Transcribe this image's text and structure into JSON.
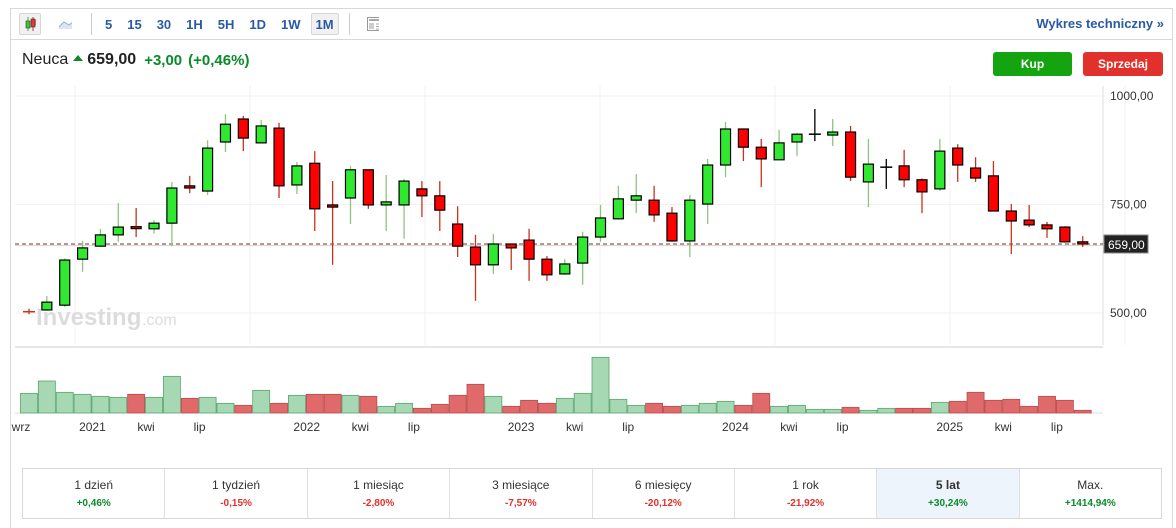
{
  "toolbar": {
    "chart_types": [
      "candlestick-icon",
      "area-chart-icon"
    ],
    "intervals": [
      "5",
      "15",
      "30",
      "1H",
      "5H",
      "1D",
      "1W",
      "1M"
    ],
    "active_interval": "1M",
    "layout_icon": "table-layout-icon",
    "technical_link": "Wykres techniczny »"
  },
  "header": {
    "name": "Neuca",
    "arrow": "up-arrow-icon",
    "price": "659,00",
    "change": "+3,00",
    "change_pct": "(+0,46%)"
  },
  "actions": {
    "buy": "Kup",
    "sell": "Sprzedaj"
  },
  "colors": {
    "up": "#31e831",
    "down": "#ff0000",
    "up_wick": "#8cc47e",
    "down_wick": "#c7341a",
    "vol_up": "#a6d8b4",
    "vol_down": "#e06a6a"
  },
  "chart_data": {
    "type": "candlestick",
    "interval": "1M",
    "y_ticks": [
      "1000,00",
      "750,00",
      "500,00"
    ],
    "y_tick_values": [
      1000,
      750,
      500
    ],
    "ylim": [
      500,
      1000
    ],
    "last_price_label": "659,00",
    "last_price": 659,
    "watermark": "Investing.com",
    "x_labels": [
      {
        "idx": 0,
        "label": "wrz"
      },
      {
        "idx": 4,
        "label": "2021"
      },
      {
        "idx": 7,
        "label": "kwi"
      },
      {
        "idx": 10,
        "label": "lip"
      },
      {
        "idx": 16,
        "label": "2022"
      },
      {
        "idx": 19,
        "label": "kwi"
      },
      {
        "idx": 22,
        "label": "lip"
      },
      {
        "idx": 28,
        "label": "2023"
      },
      {
        "idx": 31,
        "label": "kwi"
      },
      {
        "idx": 34,
        "label": "lip"
      },
      {
        "idx": 40,
        "label": "2024"
      },
      {
        "idx": 43,
        "label": "kwi"
      },
      {
        "idx": 46,
        "label": "lip"
      },
      {
        "idx": 52,
        "label": "2025"
      },
      {
        "idx": 55,
        "label": "kwi"
      },
      {
        "idx": 58,
        "label": "lip"
      }
    ],
    "ohlc": [
      [
        503,
        510,
        497,
        503
      ],
      [
        507,
        539,
        505,
        525
      ],
      [
        518,
        626,
        514,
        622
      ],
      [
        624,
        666,
        595,
        650
      ],
      [
        654,
        694,
        652,
        680
      ],
      [
        680,
        753,
        664,
        698
      ],
      [
        699,
        742,
        675,
        697
      ],
      [
        694,
        714,
        683,
        707
      ],
      [
        707,
        802,
        654,
        788
      ],
      [
        793,
        816,
        776,
        788
      ],
      [
        781,
        898,
        772,
        880
      ],
      [
        894,
        958,
        871,
        935
      ],
      [
        947,
        954,
        873,
        903
      ],
      [
        892,
        945,
        892,
        931
      ],
      [
        926,
        938,
        765,
        793
      ],
      [
        795,
        848,
        774,
        839
      ],
      [
        845,
        873,
        689,
        740
      ],
      [
        749,
        804,
        611,
        744
      ],
      [
        765,
        839,
        705,
        830
      ],
      [
        830,
        830,
        740,
        749
      ],
      [
        749,
        818,
        689,
        756
      ],
      [
        749,
        809,
        671,
        804
      ],
      [
        786,
        804,
        721,
        770
      ],
      [
        770,
        804,
        689,
        737
      ],
      [
        705,
        746,
        629,
        654
      ],
      [
        652,
        680,
        528,
        611
      ],
      [
        611,
        682,
        590,
        659
      ],
      [
        659,
        659,
        599,
        650
      ],
      [
        668,
        694,
        574,
        624
      ],
      [
        624,
        631,
        574,
        588
      ],
      [
        590,
        624,
        588,
        613
      ],
      [
        615,
        687,
        565,
        675
      ],
      [
        675,
        749,
        664,
        719
      ],
      [
        717,
        793,
        715,
        763
      ],
      [
        760,
        820,
        730,
        770
      ],
      [
        760,
        793,
        710,
        726
      ],
      [
        730,
        744,
        664,
        666
      ],
      [
        666,
        772,
        629,
        760
      ],
      [
        751,
        855,
        705,
        841
      ],
      [
        841,
        940,
        813,
        924
      ],
      [
        924,
        924,
        850,
        882
      ],
      [
        882,
        901,
        790,
        855
      ],
      [
        853,
        922,
        853,
        892
      ],
      [
        894,
        915,
        862,
        912
      ],
      [
        912,
        970,
        896,
        912
      ],
      [
        910,
        947,
        885,
        917
      ],
      [
        917,
        931,
        804,
        813
      ],
      [
        802,
        901,
        744,
        843
      ],
      [
        836,
        855,
        786,
        836
      ],
      [
        839,
        876,
        790,
        807
      ],
      [
        807,
        810,
        730,
        779
      ],
      [
        786,
        901,
        781,
        873
      ],
      [
        880,
        889,
        802,
        841
      ],
      [
        834,
        859,
        802,
        811
      ],
      [
        816,
        850,
        735,
        735
      ],
      [
        735,
        751,
        636,
        712
      ],
      [
        714,
        749,
        698,
        703
      ],
      [
        703,
        710,
        673,
        694
      ],
      [
        698,
        700,
        662,
        664
      ],
      [
        664,
        677,
        652,
        659
      ]
    ],
    "volume_relative": [
      59,
      96,
      62,
      56,
      50,
      47,
      56,
      47,
      110,
      44,
      47,
      29,
      23,
      68,
      29,
      53,
      56,
      56,
      53,
      50,
      20,
      29,
      14,
      26,
      53,
      86,
      50,
      20,
      38,
      29,
      44,
      59,
      167,
      41,
      23,
      29,
      20,
      23,
      29,
      35,
      23,
      59,
      20,
      23,
      11,
      11,
      17,
      8,
      14,
      14,
      14,
      32,
      35,
      62,
      38,
      41,
      20,
      50,
      38,
      8
    ]
  },
  "performance": [
    {
      "label": "1 dzień",
      "value": "+0,46%",
      "dir": "pos"
    },
    {
      "label": "1 tydzień",
      "value": "-0,15%",
      "dir": "neg"
    },
    {
      "label": "1 miesiąc",
      "value": "-2,80%",
      "dir": "neg"
    },
    {
      "label": "3 miesiące",
      "value": "-7,57%",
      "dir": "neg"
    },
    {
      "label": "6 miesięcy",
      "value": "-20,12%",
      "dir": "neg"
    },
    {
      "label": "1 rok",
      "value": "-21,92%",
      "dir": "neg"
    },
    {
      "label": "5 lat",
      "value": "+30,24%",
      "dir": "pos",
      "selected": true
    },
    {
      "label": "Max.",
      "value": "+1414,94%",
      "dir": "pos"
    }
  ]
}
